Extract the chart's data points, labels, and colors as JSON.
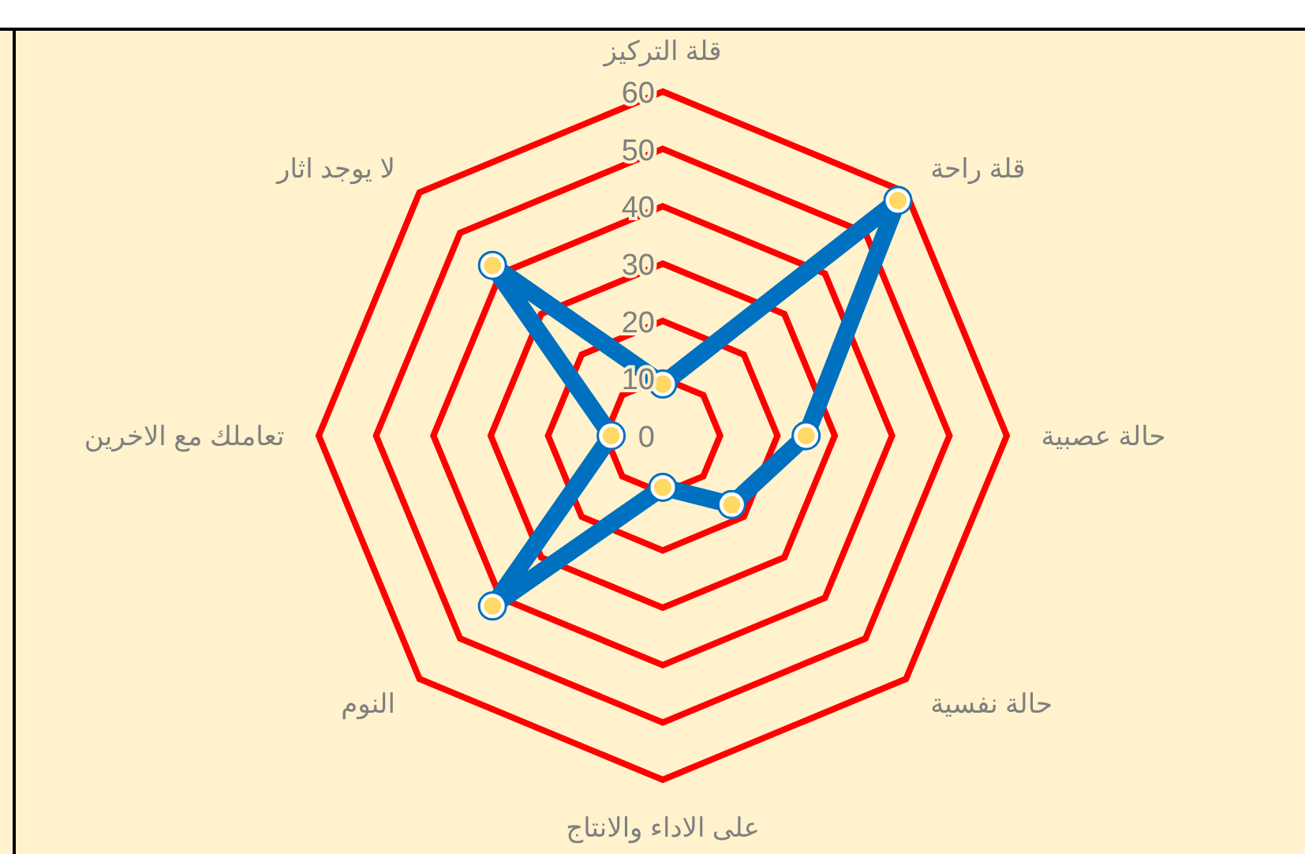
{
  "chart_data": {
    "type": "radar",
    "categories": [
      "قلة التركيز",
      "قلة راحة",
      "حالة عصبية",
      "حالة نفسية",
      "على الاداء والانتاج",
      "النوم",
      "تعاملك مع الاخرين",
      "لا يوجد اثار"
    ],
    "series": [
      {
        "color": "#0070c0",
        "values": [
          9,
          58,
          25,
          17,
          9,
          42,
          9,
          42
        ]
      }
    ],
    "ylim": [
      0,
      60
    ],
    "yticks": [
      0,
      10,
      20,
      30,
      40,
      50,
      60
    ],
    "grid": true,
    "marker": "circle"
  }
}
